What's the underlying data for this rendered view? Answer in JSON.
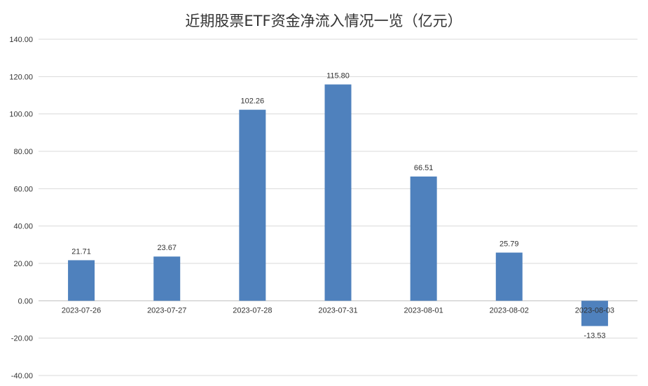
{
  "chart_data": {
    "type": "bar",
    "title": "近期股票ETF资金净流入情况一览（亿元）",
    "categories": [
      "2023-07-26",
      "2023-07-27",
      "2023-07-28",
      "2023-07-31",
      "2023-08-01",
      "2023-08-02",
      "2023-08-03"
    ],
    "values": [
      21.71,
      23.67,
      102.26,
      115.8,
      66.51,
      25.79,
      -13.53
    ],
    "value_labels": [
      "21.71",
      "23.67",
      "102.26",
      "115.80",
      "66.51",
      "25.79",
      "-13.53"
    ],
    "ylim": [
      -40,
      140
    ],
    "yticks": [
      -40,
      -20,
      0,
      20,
      40,
      60,
      80,
      100,
      120,
      140
    ],
    "ytick_labels": [
      "-40.00",
      "-20.00",
      "0.00",
      "20.00",
      "40.00",
      "60.00",
      "80.00",
      "100.00",
      "120.00",
      "140.00"
    ],
    "grid": true,
    "bar_color": "#4f81bd"
  }
}
